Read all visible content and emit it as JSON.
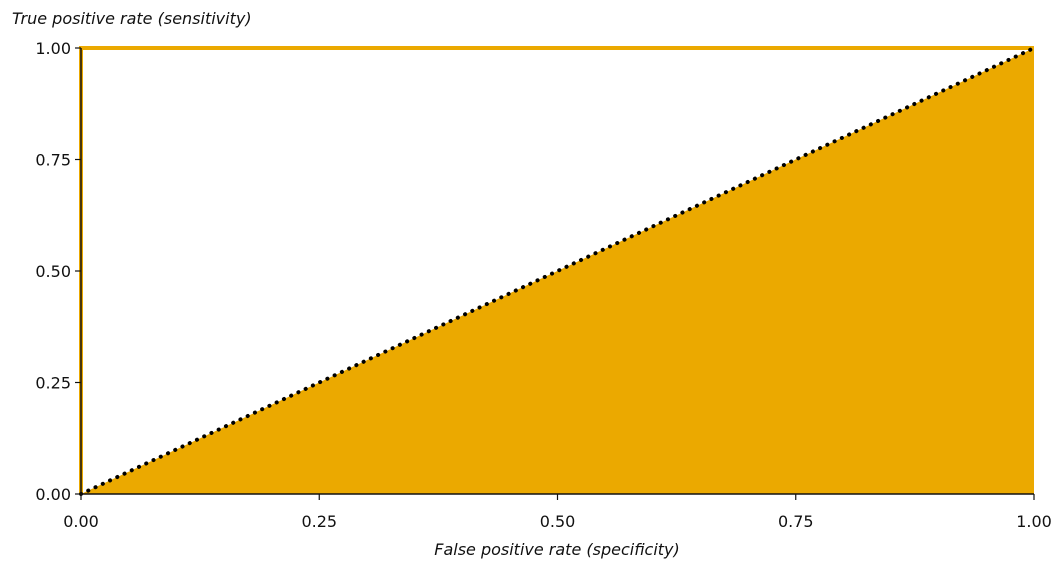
{
  "chart_data": {
    "type": "area",
    "ylabel": "True positive rate (sensitivity)",
    "xlabel": "False positive rate (specificity)",
    "xlim": [
      0,
      1
    ],
    "ylim": [
      0,
      1
    ],
    "x_ticks": [
      "0.00",
      "0.25",
      "0.50",
      "0.75",
      "1.00"
    ],
    "y_ticks": [
      "0.00",
      "0.25",
      "0.50",
      "0.75",
      "1.00"
    ],
    "grid": false,
    "series": [
      {
        "style": "area",
        "x": [
          0,
          1
        ],
        "y": [
          0,
          1
        ],
        "color": "#EBA900"
      },
      {
        "style": "line",
        "x": [
          0,
          0,
          1
        ],
        "y": [
          0,
          1,
          1
        ],
        "color": "#EBA900"
      },
      {
        "style": "dotted",
        "x": [
          0,
          1
        ],
        "y": [
          0,
          1
        ],
        "color": "#000000"
      }
    ]
  }
}
